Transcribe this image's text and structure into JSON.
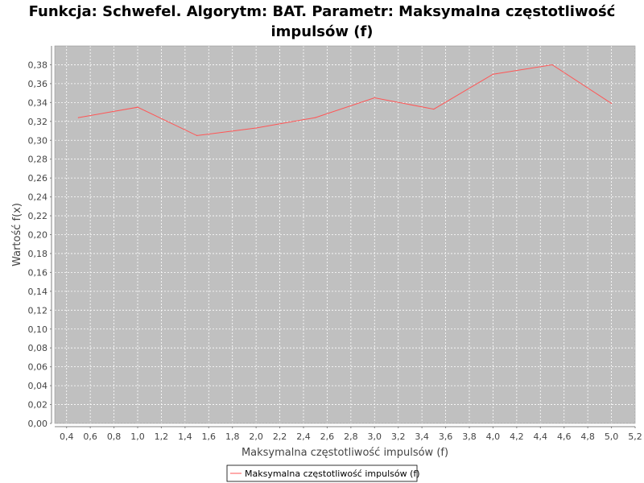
{
  "chart_data": {
    "type": "line",
    "title": "Funkcja: Schwefel. Algorytm: BAT. Parametr: Maksymalna częstotliwość impulsów (f)",
    "xlabel": "Maksymalna częstotliwość impulsów (f)",
    "ylabel": "Wartość f(x)",
    "xlim": [
      0.3,
      5.2
    ],
    "ylim": [
      0.0,
      0.4
    ],
    "x_ticks": [
      "0,4",
      "0,6",
      "0,8",
      "1,0",
      "1,2",
      "1,4",
      "1,6",
      "1,8",
      "2,0",
      "2,2",
      "2,4",
      "2,6",
      "2,8",
      "3,0",
      "3,2",
      "3,4",
      "3,6",
      "3,8",
      "4,0",
      "4,2",
      "4,4",
      "4,6",
      "4,8",
      "5,0",
      "5,2"
    ],
    "y_ticks": [
      "0,00",
      "0,02",
      "0,04",
      "0,06",
      "0,08",
      "0,10",
      "0,12",
      "0,14",
      "0,16",
      "0,18",
      "0,20",
      "0,22",
      "0,24",
      "0,26",
      "0,28",
      "0,30",
      "0,32",
      "0,34",
      "0,36",
      "0,38"
    ],
    "grid": true,
    "legend_position": "bottom",
    "background_color": "#c0c0c0",
    "series": [
      {
        "name": "Maksymalna częstotliwość impulsów (f)",
        "color": "#ff5555",
        "x": [
          0.5,
          1.0,
          1.5,
          2.0,
          2.5,
          3.0,
          3.5,
          4.0,
          4.5,
          5.0
        ],
        "y": [
          0.324,
          0.335,
          0.305,
          0.313,
          0.324,
          0.345,
          0.333,
          0.37,
          0.38,
          0.339
        ]
      }
    ]
  }
}
